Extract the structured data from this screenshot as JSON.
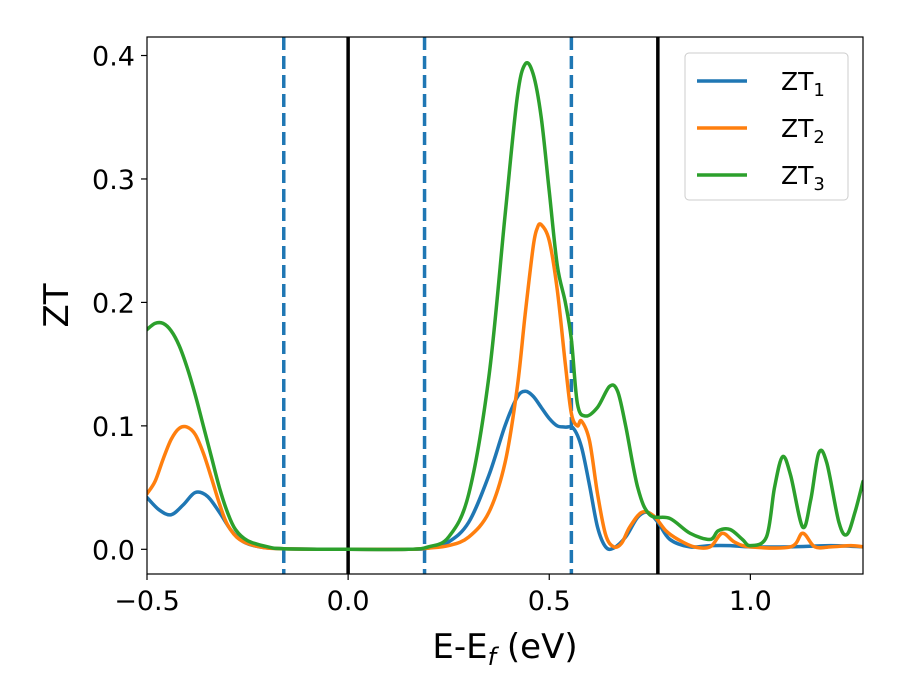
{
  "chart_data": {
    "type": "line",
    "xlabel": "E-E",
    "xlabel_sub": "f",
    "xlabel_unit": " (eV)",
    "ylabel": "ZT",
    "xlim": [
      -0.5,
      1.28
    ],
    "ylim": [
      -0.02,
      0.415
    ],
    "xticks": [
      -0.5,
      0.0,
      0.5,
      1.0
    ],
    "xtick_labels": [
      "−0.5",
      "0.0",
      "0.5",
      "1.0"
    ],
    "yticks": [
      0.0,
      0.1,
      0.2,
      0.3,
      0.4
    ],
    "ytick_labels": [
      "0.0",
      "0.1",
      "0.2",
      "0.3",
      "0.4"
    ],
    "grid": false,
    "legend_position": "top-right",
    "vlines": [
      {
        "x": 0.0,
        "style": "solid",
        "color": "#000000"
      },
      {
        "x": 0.77,
        "style": "solid",
        "color": "#000000"
      },
      {
        "x": -0.16,
        "style": "dashed",
        "color": "#1f77b4"
      },
      {
        "x": 0.19,
        "style": "dashed",
        "color": "#1f77b4"
      },
      {
        "x": 0.555,
        "style": "dashed",
        "color": "#1f77b4"
      }
    ],
    "series": [
      {
        "name": "ZT",
        "sub": "1",
        "color": "#1f77b4",
        "points": [
          [
            -0.5,
            0.042
          ],
          [
            -0.47,
            0.032
          ],
          [
            -0.44,
            0.028
          ],
          [
            -0.41,
            0.036
          ],
          [
            -0.38,
            0.046
          ],
          [
            -0.35,
            0.043
          ],
          [
            -0.32,
            0.03
          ],
          [
            -0.29,
            0.015
          ],
          [
            -0.26,
            0.006
          ],
          [
            -0.22,
            0.002
          ],
          [
            -0.16,
            0.0005
          ],
          [
            0.0,
            0.0
          ],
          [
            0.15,
            0.0
          ],
          [
            0.2,
            0.001
          ],
          [
            0.25,
            0.006
          ],
          [
            0.3,
            0.022
          ],
          [
            0.35,
            0.06
          ],
          [
            0.39,
            0.1
          ],
          [
            0.42,
            0.123
          ],
          [
            0.44,
            0.128
          ],
          [
            0.46,
            0.124
          ],
          [
            0.48,
            0.115
          ],
          [
            0.5,
            0.106
          ],
          [
            0.52,
            0.1
          ],
          [
            0.54,
            0.099
          ],
          [
            0.56,
            0.098
          ],
          [
            0.58,
            0.083
          ],
          [
            0.6,
            0.052
          ],
          [
            0.62,
            0.018
          ],
          [
            0.64,
            0.002
          ],
          [
            0.66,
            0.001
          ],
          [
            0.69,
            0.01
          ],
          [
            0.72,
            0.026
          ],
          [
            0.745,
            0.03
          ],
          [
            0.77,
            0.022
          ],
          [
            0.8,
            0.008
          ],
          [
            0.85,
            0.002
          ],
          [
            0.9,
            0.003
          ],
          [
            0.95,
            0.003
          ],
          [
            1.0,
            0.002
          ],
          [
            1.1,
            0.002
          ],
          [
            1.2,
            0.003
          ],
          [
            1.28,
            0.002
          ]
        ]
      },
      {
        "name": "ZT",
        "sub": "2",
        "color": "#ff7f0e",
        "points": [
          [
            -0.5,
            0.045
          ],
          [
            -0.48,
            0.055
          ],
          [
            -0.46,
            0.073
          ],
          [
            -0.44,
            0.089
          ],
          [
            -0.42,
            0.098
          ],
          [
            -0.4,
            0.099
          ],
          [
            -0.38,
            0.093
          ],
          [
            -0.36,
            0.078
          ],
          [
            -0.34,
            0.058
          ],
          [
            -0.32,
            0.037
          ],
          [
            -0.3,
            0.02
          ],
          [
            -0.27,
            0.008
          ],
          [
            -0.22,
            0.002
          ],
          [
            -0.16,
            0.0005
          ],
          [
            0.0,
            0.0
          ],
          [
            0.15,
            0.0
          ],
          [
            0.2,
            0.001
          ],
          [
            0.25,
            0.003
          ],
          [
            0.3,
            0.01
          ],
          [
            0.35,
            0.03
          ],
          [
            0.39,
            0.07
          ],
          [
            0.42,
            0.13
          ],
          [
            0.44,
            0.19
          ],
          [
            0.46,
            0.245
          ],
          [
            0.47,
            0.26
          ],
          [
            0.48,
            0.263
          ],
          [
            0.5,
            0.25
          ],
          [
            0.52,
            0.21
          ],
          [
            0.54,
            0.15
          ],
          [
            0.555,
            0.11
          ],
          [
            0.57,
            0.1
          ],
          [
            0.58,
            0.104
          ],
          [
            0.6,
            0.088
          ],
          [
            0.62,
            0.045
          ],
          [
            0.64,
            0.012
          ],
          [
            0.66,
            0.002
          ],
          [
            0.68,
            0.005
          ],
          [
            0.7,
            0.018
          ],
          [
            0.73,
            0.03
          ],
          [
            0.76,
            0.027
          ],
          [
            0.79,
            0.015
          ],
          [
            0.82,
            0.008
          ],
          [
            0.86,
            0.002
          ],
          [
            0.9,
            0.002
          ],
          [
            0.93,
            0.013
          ],
          [
            0.96,
            0.006
          ],
          [
            1.0,
            0.002
          ],
          [
            1.1,
            0.002
          ],
          [
            1.13,
            0.013
          ],
          [
            1.16,
            0.002
          ],
          [
            1.2,
            0.002
          ],
          [
            1.25,
            0.003
          ],
          [
            1.28,
            0.002
          ]
        ]
      },
      {
        "name": "ZT",
        "sub": "3",
        "color": "#2ca02c",
        "points": [
          [
            -0.5,
            0.178
          ],
          [
            -0.48,
            0.183
          ],
          [
            -0.46,
            0.183
          ],
          [
            -0.44,
            0.177
          ],
          [
            -0.42,
            0.165
          ],
          [
            -0.4,
            0.147
          ],
          [
            -0.38,
            0.125
          ],
          [
            -0.36,
            0.1
          ],
          [
            -0.34,
            0.075
          ],
          [
            -0.32,
            0.05
          ],
          [
            -0.3,
            0.03
          ],
          [
            -0.28,
            0.016
          ],
          [
            -0.25,
            0.007
          ],
          [
            -0.2,
            0.002
          ],
          [
            -0.16,
            0.0005
          ],
          [
            0.0,
            0.0
          ],
          [
            0.15,
            0.0
          ],
          [
            0.2,
            0.002
          ],
          [
            0.25,
            0.01
          ],
          [
            0.3,
            0.045
          ],
          [
            0.35,
            0.14
          ],
          [
            0.39,
            0.27
          ],
          [
            0.42,
            0.365
          ],
          [
            0.44,
            0.393
          ],
          [
            0.46,
            0.385
          ],
          [
            0.48,
            0.35
          ],
          [
            0.5,
            0.29
          ],
          [
            0.52,
            0.23
          ],
          [
            0.54,
            0.2
          ],
          [
            0.555,
            0.17
          ],
          [
            0.57,
            0.118
          ],
          [
            0.59,
            0.108
          ],
          [
            0.62,
            0.115
          ],
          [
            0.65,
            0.132
          ],
          [
            0.67,
            0.128
          ],
          [
            0.69,
            0.1
          ],
          [
            0.72,
            0.05
          ],
          [
            0.75,
            0.028
          ],
          [
            0.8,
            0.025
          ],
          [
            0.85,
            0.013
          ],
          [
            0.9,
            0.008
          ],
          [
            0.92,
            0.015
          ],
          [
            0.95,
            0.016
          ],
          [
            0.98,
            0.008
          ],
          [
            1.0,
            0.003
          ],
          [
            1.04,
            0.01
          ],
          [
            1.06,
            0.05
          ],
          [
            1.08,
            0.075
          ],
          [
            1.1,
            0.06
          ],
          [
            1.13,
            0.018
          ],
          [
            1.15,
            0.04
          ],
          [
            1.17,
            0.078
          ],
          [
            1.19,
            0.07
          ],
          [
            1.22,
            0.022
          ],
          [
            1.24,
            0.012
          ],
          [
            1.26,
            0.03
          ],
          [
            1.28,
            0.055
          ]
        ]
      }
    ]
  }
}
